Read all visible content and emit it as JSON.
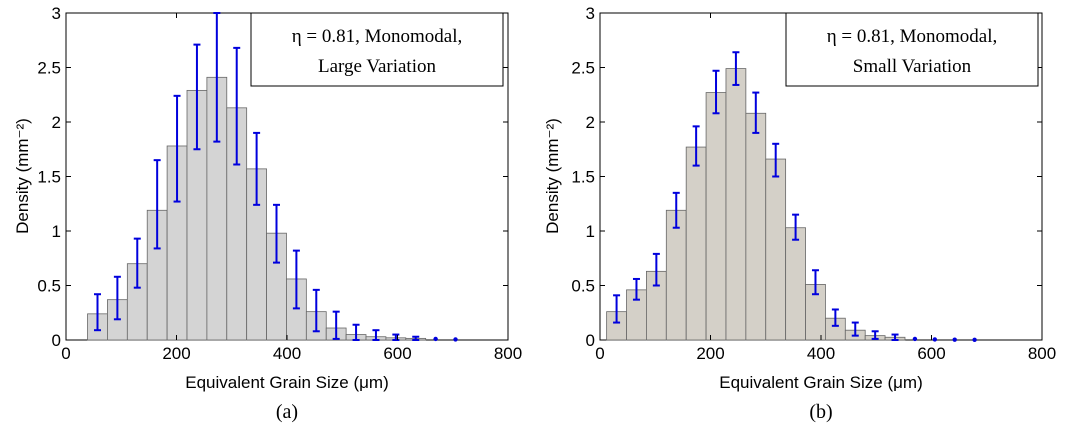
{
  "chart_data": [
    {
      "type": "bar",
      "panel_label": "(a)",
      "xlabel": "Equivalent  Grain Size (μm)",
      "ylabel": "Density (mm⁻²)",
      "annotation": [
        "η = 0.81, Monomodal,",
        "Large Variation"
      ],
      "xlim": [
        0,
        800
      ],
      "ylim": [
        0,
        3
      ],
      "xticks": [
        "0",
        "200",
        "400",
        "600",
        "800"
      ],
      "yticks": [
        "0",
        "0.5",
        "1",
        "1.5",
        "2",
        "2.5",
        "3"
      ],
      "bar_width": 36,
      "x": [
        57,
        93,
        129,
        165,
        201,
        237,
        273,
        309,
        345,
        381,
        417,
        453,
        489,
        525,
        561,
        597,
        633,
        669,
        705
      ],
      "values": [
        0.24,
        0.37,
        0.7,
        1.19,
        1.78,
        2.29,
        2.41,
        2.13,
        1.57,
        0.98,
        0.56,
        0.26,
        0.11,
        0.05,
        0.03,
        0.02,
        0.015,
        0.01,
        0.005
      ],
      "error_low": [
        0.09,
        0.19,
        0.48,
        0.84,
        1.27,
        1.75,
        1.82,
        1.61,
        1.24,
        0.71,
        0.29,
        0.08,
        0.01,
        0.0,
        0.0,
        0.0,
        0.0,
        0.0,
        0.0
      ],
      "error_high": [
        0.42,
        0.58,
        0.93,
        1.65,
        2.24,
        2.71,
        3.0,
        2.68,
        1.9,
        1.24,
        0.82,
        0.46,
        0.26,
        0.14,
        0.09,
        0.05,
        0.03,
        0.02,
        0.01
      ],
      "bar_color": "#d4d4d4",
      "error_color": "#0000dd",
      "grid": false
    },
    {
      "type": "bar",
      "panel_label": "(b)",
      "xlabel": "Equivalent  Grain Size (μm)",
      "ylabel": "Density (mm⁻²)",
      "annotation": [
        "η = 0.81, Monomodal,",
        "Small Variation"
      ],
      "xlim": [
        0,
        800
      ],
      "ylim": [
        0,
        3
      ],
      "xticks": [
        "0",
        "200",
        "400",
        "600",
        "800"
      ],
      "yticks": [
        "0",
        "0.5",
        "1",
        "1.5",
        "2",
        "2.5",
        "3"
      ],
      "bar_width": 36,
      "x": [
        30,
        66,
        102,
        138,
        174,
        210,
        246,
        282,
        318,
        354,
        390,
        426,
        462,
        498,
        534,
        570,
        606,
        642,
        678
      ],
      "values": [
        0.26,
        0.46,
        0.63,
        1.19,
        1.77,
        2.27,
        2.49,
        2.08,
        1.66,
        1.03,
        0.51,
        0.2,
        0.09,
        0.04,
        0.025,
        0.01,
        0.005,
        0.003,
        0.002
      ],
      "error_low": [
        0.16,
        0.37,
        0.5,
        1.03,
        1.6,
        2.08,
        2.34,
        1.9,
        1.5,
        0.92,
        0.42,
        0.13,
        0.04,
        0.01,
        0.0,
        0.0,
        0.0,
        0.0,
        0.0
      ],
      "error_high": [
        0.41,
        0.56,
        0.79,
        1.35,
        1.96,
        2.47,
        2.64,
        2.27,
        1.8,
        1.15,
        0.64,
        0.28,
        0.16,
        0.08,
        0.05,
        0.02,
        0.01,
        0.006,
        0.004
      ],
      "bar_color": "#d4d0c8",
      "error_color": "#0000dd",
      "grid": false
    }
  ]
}
